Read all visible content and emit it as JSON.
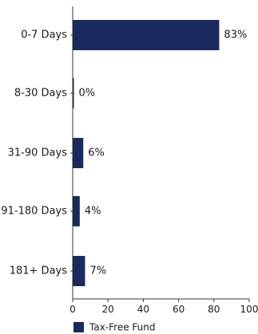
{
  "chart_data": {
    "type": "bar",
    "orientation": "horizontal",
    "categories": [
      "0-7 Days",
      "8-30 Days",
      "31-90 Days",
      "91-180 Days",
      "181+ Days"
    ],
    "series": [
      {
        "name": "Tax-Free Fund",
        "values": [
          83,
          0,
          6,
          4,
          7
        ],
        "labels": [
          "83%",
          "0%",
          "6%",
          "4%",
          "7%"
        ],
        "color": "#1b2a5e"
      }
    ],
    "xlim": [
      0,
      100
    ],
    "xticks": [
      0,
      20,
      40,
      60,
      80,
      100
    ],
    "grid": false,
    "legend": {
      "position": "bottom-left",
      "label": "Tax-Free Fund"
    }
  }
}
